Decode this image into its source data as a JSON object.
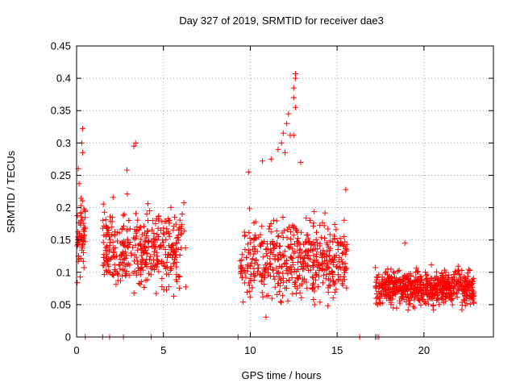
{
  "chart_data": {
    "type": "scatter",
    "title": "Day 327 of 2019, SRMTID for receiver dae3",
    "xlabel": "GPS time / hours",
    "ylabel": "SRMTID / TECUs",
    "xlim": [
      0,
      24
    ],
    "ylim": [
      0,
      0.45
    ],
    "xticks": [
      0,
      5,
      10,
      15,
      20
    ],
    "yticks": [
      0,
      0.05,
      0.1,
      0.15,
      0.2,
      0.25,
      0.3,
      0.35,
      0.4,
      0.45
    ],
    "xtick_labels": [
      "0",
      "5",
      "10",
      "15",
      "20"
    ],
    "ytick_labels": [
      "0",
      "0.05",
      "0.1",
      "0.15",
      "0.2",
      "0.25",
      "0.3",
      "0.35",
      "0.4",
      "0.45"
    ],
    "grid": true,
    "marker": "+",
    "color": "#ff0000",
    "clusters": [
      {
        "x_range": [
          0.0,
          0.5
        ],
        "y_center": 0.16,
        "y_spread": 0.06,
        "count": 60,
        "seed": 11
      },
      {
        "x_range": [
          1.5,
          6.3
        ],
        "y_center": 0.135,
        "y_spread": 0.05,
        "count": 380,
        "seed": 23
      },
      {
        "x_range": [
          9.4,
          15.6
        ],
        "y_center": 0.12,
        "y_spread": 0.05,
        "count": 500,
        "seed": 37
      },
      {
        "x_range": [
          17.2,
          22.9
        ],
        "y_center": 0.075,
        "y_spread": 0.022,
        "count": 620,
        "seed": 51
      }
    ],
    "outliers": [
      {
        "x": 0.35,
        "y": 0.322
      },
      {
        "x": 0.3,
        "y": 0.3
      },
      {
        "x": 0.35,
        "y": 0.285
      },
      {
        "x": 3.4,
        "y": 0.3
      },
      {
        "x": 3.3,
        "y": 0.295
      },
      {
        "x": 2.9,
        "y": 0.258
      },
      {
        "x": 12.6,
        "y": 0.407
      },
      {
        "x": 12.6,
        "y": 0.4
      },
      {
        "x": 12.5,
        "y": 0.385
      },
      {
        "x": 12.5,
        "y": 0.37
      },
      {
        "x": 12.6,
        "y": 0.355
      },
      {
        "x": 12.2,
        "y": 0.345
      },
      {
        "x": 12.1,
        "y": 0.33
      },
      {
        "x": 12.3,
        "y": 0.312
      },
      {
        "x": 12.5,
        "y": 0.312
      },
      {
        "x": 11.9,
        "y": 0.315
      },
      {
        "x": 11.8,
        "y": 0.3
      },
      {
        "x": 11.6,
        "y": 0.29
      },
      {
        "x": 12.0,
        "y": 0.285
      },
      {
        "x": 11.2,
        "y": 0.275
      },
      {
        "x": 10.7,
        "y": 0.272
      },
      {
        "x": 9.9,
        "y": 0.255
      },
      {
        "x": 12.9,
        "y": 0.27
      },
      {
        "x": 15.5,
        "y": 0.228
      },
      {
        "x": 18.9,
        "y": 0.145
      },
      {
        "x": 0.1,
        "y": 0.26
      }
    ],
    "zero_marks": [
      0.5,
      1.5,
      1.9,
      2.7,
      4.3,
      9.3,
      16.3,
      17.2,
      17.3,
      17.4
    ]
  }
}
